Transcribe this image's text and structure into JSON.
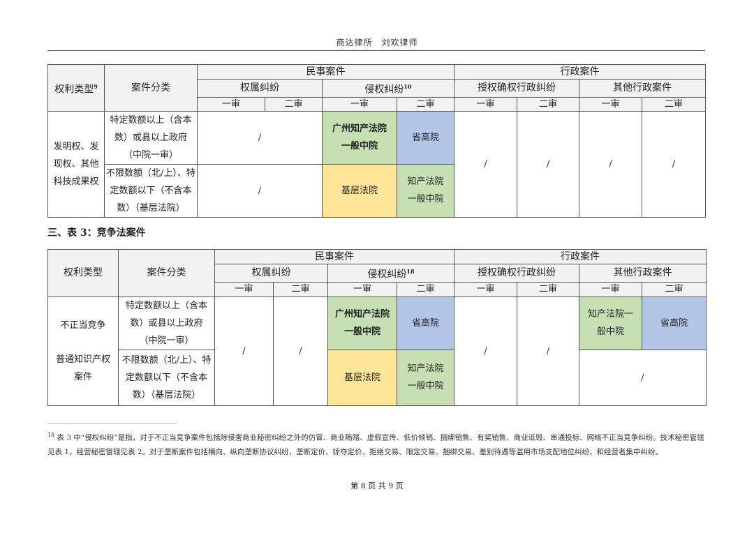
{
  "header": {
    "text": "商达律所　刘欢律师"
  },
  "table1": {
    "col_type": "权利类型",
    "col_type_sup": "9",
    "col_cat": "案件分类",
    "civil": "民事案件",
    "admin": "行政案件",
    "ownership": "权属纠纷",
    "infringe": "侵权纠纷",
    "infringe_sup": "10",
    "grant": "授权确权行政纠纷",
    "other_admin": "其他行政案件",
    "first": "一审",
    "second": "二审",
    "right_type": "发明权、发现权、其他科技成果权",
    "rows": [
      {
        "category": "特定数额以上（含本数）或县以上政府（中院一审）",
        "ownership": "/",
        "inf_first": "广州知产法院一般中院",
        "inf_second": "省高院"
      },
      {
        "category": "不限数额（北/上）、特定数额以下（不含本数）（基层法院）",
        "ownership": "/",
        "inf_first": "基层法院",
        "inf_second": "知产法院一般中院"
      }
    ],
    "admin_cells": [
      "/",
      "/",
      "/",
      "/"
    ]
  },
  "section": {
    "title": "三、表 3：竞争法案件"
  },
  "table2": {
    "col_type": "权利类型",
    "col_cat": "案件分类",
    "civil": "民事案件",
    "admin": "行政案件",
    "ownership": "权属纠纷",
    "infringe": "侵权纠纷",
    "infringe_sup": "18",
    "grant": "授权确权行政纠纷",
    "other_admin": "其他行政案件",
    "first": "一审",
    "second": "二审",
    "right_type_a": "不正当竞争",
    "right_type_b": "普通知识产权案件",
    "own_first": "/",
    "own_second": "/",
    "grant_first": "/",
    "grant_second": "/",
    "rows": [
      {
        "category": "特定数额以上（含本数）或县以上政府（中院一审）",
        "inf_first": "广州知产法院一般中院",
        "inf_second": "省高院",
        "other_first": "知产法院一般中院",
        "other_second": "省高院"
      },
      {
        "category": "不限数额（北/上）、特定数额以下（不含本数）（基层法院）",
        "inf_first": "基层法院",
        "inf_second": "知产法院一般中院",
        "other": "/"
      }
    ]
  },
  "footnote": {
    "num": "18",
    "text": "表 3 中“侵权纠纷”是指，对于不正当竞争案件包括除侵害商业秘密纠纷之外的仿冒、商业贿赂、虚假宣传、低价倾销、捆绑销售、有奖销售、商业诋毁、串通投标、网络不正当竞争纠纷。技术秘密管辖见表 1，经营秘密管辖见表 2。对于垄断案件包括横向、纵向垄断协议纠纷，垄断定价、掠夺定价、拒绝交易、限定交易、捆绑交易、差别待遇等滥用市场支配地位纠纷，和经营者集中纠纷。"
  },
  "page": {
    "text": "第 8 页 共 9 页"
  },
  "colors": {
    "green": "#c6e0b4",
    "blue": "#b4c6e7",
    "yellow": "#ffe699",
    "header": "#f2f2f2"
  }
}
